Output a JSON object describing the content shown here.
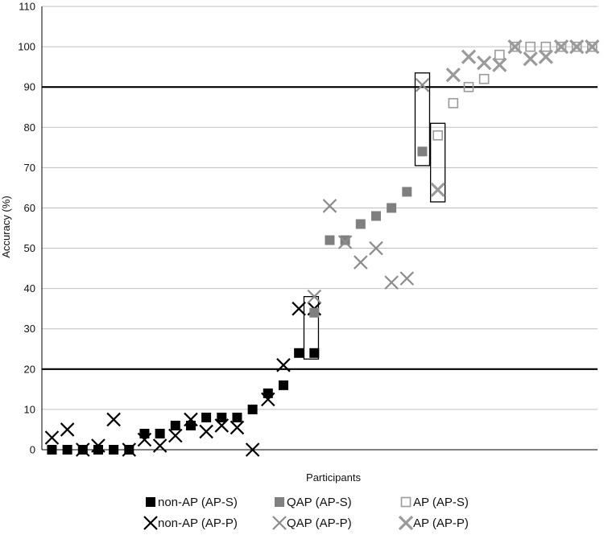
{
  "chart_data": {
    "type": "scatter",
    "title": "",
    "xlabel": "Participants",
    "ylabel": "Accuracy (%)",
    "ylim": [
      0,
      110
    ],
    "yticks": [
      0,
      10,
      20,
      30,
      40,
      50,
      60,
      70,
      80,
      90,
      100,
      110
    ],
    "grid": "horizontal",
    "reference_lines": [
      20,
      90
    ],
    "legend_position": "bottom",
    "series": [
      {
        "name": "non-AP (AP-S)",
        "marker": "filled-square",
        "color": "#000000",
        "x": [
          1,
          2,
          3,
          4,
          5,
          6,
          7,
          8,
          9,
          10,
          11,
          12,
          13,
          14,
          15,
          16,
          17,
          18
        ],
        "y": [
          0,
          0,
          0,
          0,
          0,
          0,
          4,
          4,
          6,
          6,
          8,
          8,
          8,
          10,
          14,
          16,
          24,
          24
        ]
      },
      {
        "name": "non-AP (AP-P)",
        "marker": "x",
        "color": "#000000",
        "x": [
          1,
          2,
          3,
          4,
          5,
          6,
          7,
          8,
          9,
          10,
          11,
          12,
          13,
          14,
          15,
          16,
          17,
          18
        ],
        "y": [
          3,
          5,
          0,
          1,
          7.5,
          0,
          2.5,
          1,
          3.5,
          7.5,
          4.5,
          6,
          5.5,
          0,
          12.5,
          21,
          35,
          35
        ]
      },
      {
        "name": "QAP (AP-S)",
        "marker": "filled-square",
        "color": "#7f7f7f",
        "x": [
          18,
          19,
          20,
          21,
          22,
          23,
          24,
          25
        ],
        "y": [
          34,
          52,
          52,
          56,
          58,
          60,
          64,
          74
        ]
      },
      {
        "name": "QAP (AP-P)",
        "marker": "x",
        "color": "#8c8c8c",
        "x": [
          18,
          19,
          20,
          21,
          22,
          23,
          24,
          25
        ],
        "y": [
          38,
          60.5,
          51.5,
          46.5,
          50,
          41.5,
          42.5,
          90.5
        ]
      },
      {
        "name": "AP (AP-S)",
        "marker": "open-square",
        "color": "#9a9a9a",
        "x": [
          26,
          27,
          28,
          29,
          30,
          31,
          32,
          33,
          34,
          35,
          36
        ],
        "y": [
          78,
          86,
          90,
          92,
          98,
          100,
          100,
          100,
          100,
          100,
          100
        ]
      },
      {
        "name": "AP (AP-P)",
        "marker": "bold-x",
        "color": "#9a9a9a",
        "x": [
          26,
          27,
          28,
          29,
          30,
          31,
          32,
          33,
          34,
          35,
          36
        ],
        "y": [
          64.5,
          93,
          97.5,
          96,
          95.5,
          100,
          97,
          97.5,
          100,
          100,
          100
        ]
      }
    ],
    "highlight_boxes": [
      {
        "x": 17.8,
        "y_low": 22.5,
        "y_high": 38
      },
      {
        "x": 25.0,
        "y_low": 70.5,
        "y_high": 93.5
      },
      {
        "x": 26.0,
        "y_low": 61.5,
        "y_high": 81
      }
    ]
  },
  "legend": {
    "items": [
      {
        "label": "non-AP (AP-S)",
        "marker": "filled-square",
        "color": "#000000"
      },
      {
        "label": "QAP (AP-S)",
        "marker": "filled-square",
        "color": "#7f7f7f"
      },
      {
        "label": "AP (AP-S)",
        "marker": "open-square",
        "color": "#9a9a9a"
      },
      {
        "label": "non-AP (AP-P)",
        "marker": "x",
        "color": "#000000"
      },
      {
        "label": "QAP (AP-P)",
        "marker": "x",
        "color": "#8c8c8c"
      },
      {
        "label": "AP (AP-P)",
        "marker": "bold-x",
        "color": "#9a9a9a"
      }
    ]
  }
}
